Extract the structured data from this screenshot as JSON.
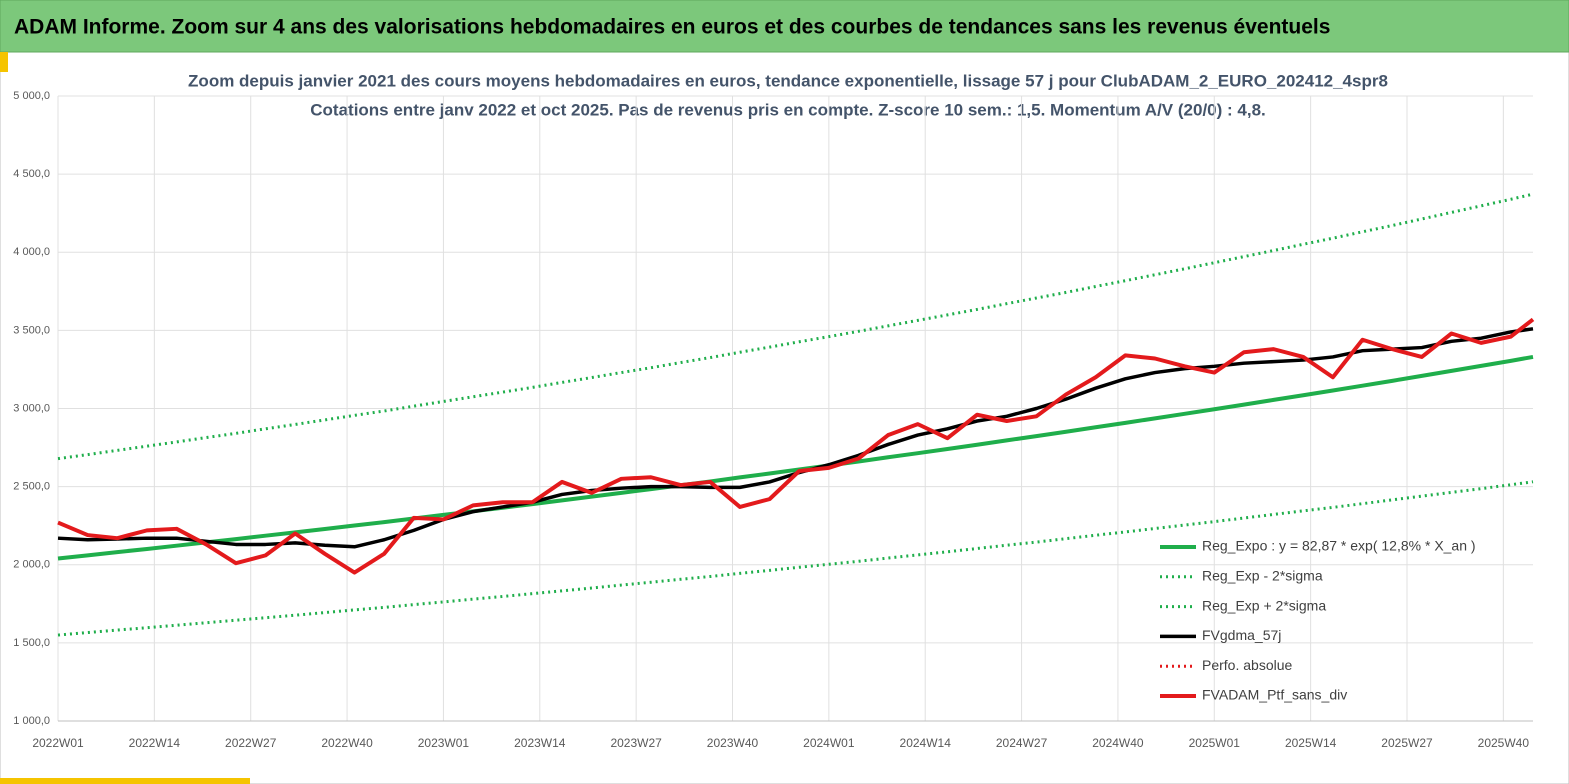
{
  "header": "ADAM Informe. Zoom sur 4 ans des valorisations hebdomadaires en euros et des courbes de tendances sans les revenus éventuels",
  "chart_data": {
    "type": "line",
    "title": "Zoom depuis janvier 2021 des cours moyens hebdomadaires  en euros, tendance exponentielle, lissage 57 j pour ClubADAM_2_EURO_202412_4spr8",
    "subtitle": "Cotations entre janv 2022 et oct 2025. Pas de revenus pris en compte. Z-score 10 sem.: 1,5. Momentum A/V (20/0) : 4,8.",
    "x": [
      0,
      4,
      8,
      12,
      16,
      20,
      24,
      28,
      32,
      36,
      40,
      44,
      48,
      52,
      56,
      60,
      64,
      68,
      72,
      76,
      80,
      84,
      88,
      92,
      96,
      100,
      104,
      108,
      112,
      116,
      120,
      124,
      128,
      132,
      136,
      140,
      144,
      148,
      152,
      156,
      160,
      164,
      168,
      172,
      176,
      180,
      184,
      188,
      192,
      196,
      199
    ],
    "xlim": [
      0,
      199
    ],
    "xticks": [
      {
        "value": 0,
        "label": "2022W01"
      },
      {
        "value": 13,
        "label": "2022W14"
      },
      {
        "value": 26,
        "label": "2022W27"
      },
      {
        "value": 39,
        "label": "2022W40"
      },
      {
        "value": 52,
        "label": "2023W01"
      },
      {
        "value": 65,
        "label": "2023W14"
      },
      {
        "value": 78,
        "label": "2023W27"
      },
      {
        "value": 91,
        "label": "2023W40"
      },
      {
        "value": 104,
        "label": "2024W01"
      },
      {
        "value": 117,
        "label": "2024W14"
      },
      {
        "value": 130,
        "label": "2024W27"
      },
      {
        "value": 143,
        "label": "2024W40"
      },
      {
        "value": 156,
        "label": "2025W01"
      },
      {
        "value": 169,
        "label": "2025W14"
      },
      {
        "value": 182,
        "label": "2025W27"
      },
      {
        "value": 195,
        "label": "2025W40"
      }
    ],
    "ylim": [
      1000,
      5000
    ],
    "yticks": [
      {
        "value": 1000,
        "label": "1 000,0"
      },
      {
        "value": 1500,
        "label": "1 500,0"
      },
      {
        "value": 2000,
        "label": "2 000,0"
      },
      {
        "value": 2500,
        "label": "2 500,0"
      },
      {
        "value": 3000,
        "label": "3 000,0"
      },
      {
        "value": 3500,
        "label": "3 500,0"
      },
      {
        "value": 4000,
        "label": "4 000,0"
      },
      {
        "value": 4500,
        "label": "4 500,0"
      },
      {
        "value": 5000,
        "label": "5 000,0"
      }
    ],
    "grid": true,
    "legend": "bottom-right",
    "series": [
      {
        "name": "Reg_Expo : y = 82,87 * exp( 12,8% *  X_an )",
        "color": "#1fae4b",
        "style": "solid",
        "values": [
          2040,
          2060,
          2081,
          2101,
          2122,
          2143,
          2164,
          2186,
          2207,
          2229,
          2251,
          2273,
          2296,
          2319,
          2342,
          2365,
          2388,
          2412,
          2436,
          2460,
          2484,
          2509,
          2533,
          2559,
          2584,
          2610,
          2635,
          2661,
          2688,
          2714,
          2741,
          2768,
          2796,
          2823,
          2851,
          2880,
          2908,
          2937,
          2966,
          2995,
          3025,
          3055,
          3085,
          3115,
          3146,
          3177,
          3209,
          3241,
          3273,
          3305,
          3330
        ]
      },
      {
        "name": "Reg_Exp - 2*sigma",
        "color": "#1fae4b",
        "style": "dotted",
        "values": [
          1550,
          1566,
          1582,
          1597,
          1613,
          1629,
          1645,
          1661,
          1677,
          1694,
          1711,
          1727,
          1745,
          1762,
          1780,
          1797,
          1815,
          1833,
          1851,
          1870,
          1888,
          1907,
          1925,
          1945,
          1964,
          1984,
          2003,
          2022,
          2043,
          2063,
          2083,
          2104,
          2125,
          2145,
          2167,
          2189,
          2210,
          2232,
          2254,
          2276,
          2299,
          2322,
          2345,
          2367,
          2391,
          2415,
          2439,
          2463,
          2487,
          2512,
          2531
        ]
      },
      {
        "name": "Reg_Exp + 2*sigma",
        "color": "#1fae4b",
        "style": "dotted",
        "values": [
          2679,
          2705,
          2732,
          2759,
          2786,
          2814,
          2841,
          2870,
          2898,
          2927,
          2956,
          2984,
          3015,
          3045,
          3075,
          3105,
          3135,
          3167,
          3198,
          3230,
          3261,
          3294,
          3326,
          3360,
          3393,
          3427,
          3460,
          3494,
          3529,
          3564,
          3599,
          3634,
          3671,
          3707,
          3743,
          3781,
          3818,
          3856,
          3894,
          3933,
          3972,
          4011,
          4051,
          4090,
          4131,
          4171,
          4213,
          4255,
          4297,
          4339,
          4372
        ]
      },
      {
        "name": "FVgdma_57j",
        "color": "#000000",
        "style": "solid",
        "values": [
          2170,
          2160,
          2165,
          2170,
          2170,
          2150,
          2130,
          2130,
          2140,
          2125,
          2115,
          2160,
          2220,
          2290,
          2340,
          2370,
          2400,
          2450,
          2475,
          2490,
          2500,
          2500,
          2495,
          2495,
          2530,
          2590,
          2640,
          2700,
          2770,
          2830,
          2870,
          2920,
          2950,
          3000,
          3060,
          3130,
          3190,
          3230,
          3255,
          3270,
          3290,
          3300,
          3310,
          3330,
          3370,
          3380,
          3390,
          3430,
          3450,
          3490,
          3510
        ]
      },
      {
        "name": "Perfo. absolue",
        "color": "#e31a1c",
        "style": "dotted"
      },
      {
        "name": "FVADAM_Ptf_sans_div",
        "color": "#e31a1c",
        "style": "solid",
        "values": [
          2270,
          2190,
          2170,
          2220,
          2230,
          2130,
          2010,
          2060,
          2200,
          2070,
          1950,
          2070,
          2300,
          2290,
          2380,
          2400,
          2400,
          2530,
          2460,
          2550,
          2560,
          2510,
          2530,
          2370,
          2420,
          2600,
          2620,
          2680,
          2830,
          2900,
          2810,
          2960,
          2920,
          2950,
          3090,
          3200,
          3340,
          3320,
          3270,
          3230,
          3360,
          3380,
          3330,
          3200,
          3440,
          3380,
          3330,
          3480,
          3420,
          3460,
          3570
        ]
      }
    ]
  }
}
